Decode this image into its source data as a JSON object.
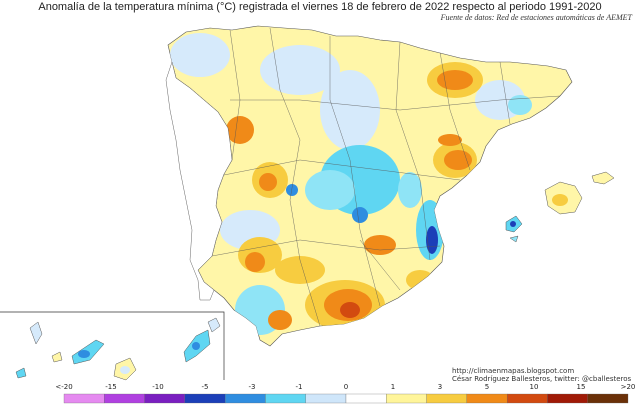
{
  "title": "Anomalía de la temperatura mínima (°C) registrada el viernes 18 de febrero de 2022 respecto al periodo 1991-2020",
  "source": "Fuente de datos: Red de estaciones automáticas de AEMET",
  "credits": {
    "url": "http://climaenmapas.blogspot.com",
    "author": "César Rodríguez Ballesteros, twitter: @cballesteros"
  },
  "legend": {
    "ticks": [
      "<-20",
      "-15",
      "-10",
      "-5",
      "-3",
      "-1",
      "0",
      "1",
      "3",
      "5",
      "10",
      "15",
      ">20"
    ],
    "colors": [
      "#e58af0",
      "#b040e0",
      "#7a1fc0",
      "#1c3fb8",
      "#2f8de0",
      "#5fd6f2",
      "#cfe6fa",
      "#ffffff",
      "#fff59a",
      "#f7cc40",
      "#f08a18",
      "#d24a10",
      "#a01a06",
      "#6a3008"
    ]
  }
}
